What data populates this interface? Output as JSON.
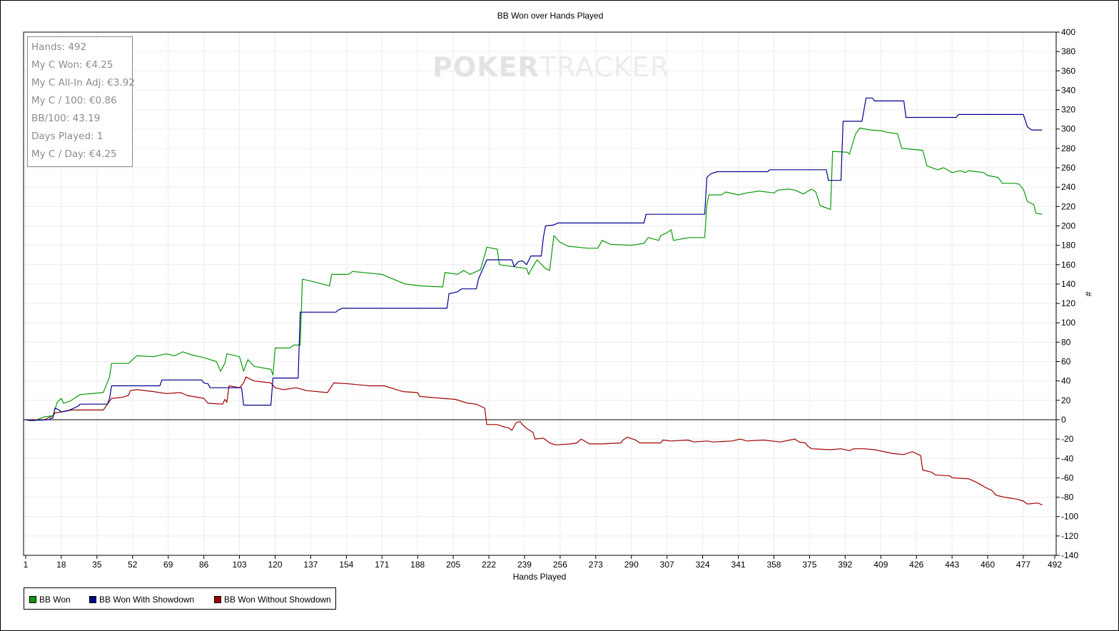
{
  "stats": {
    "hands": "Hands: 492",
    "my_c_won": "My C Won: €4.25",
    "all_in_adj": "My C All-In Adj: €3.92",
    "my_c_100": "My C / 100: €0.86",
    "bb_100": "BB/100: 43.19",
    "days_played": "Days Played: 1",
    "my_c_day": "My C / Day: €4.25"
  },
  "watermark": {
    "part1": "POKER",
    "part2": "TRACKER"
  },
  "legend": {
    "items": [
      {
        "label": "BB Won",
        "color": "#0a9a0a"
      },
      {
        "label": "BB Won With Showdown",
        "color": "#00008b"
      },
      {
        "label": "BB Won Without Showdown",
        "color": "#a00000"
      }
    ]
  },
  "chart_data": {
    "type": "line",
    "title": "BB Won over Hands Played",
    "xlabel": "Hands Played",
    "ylabel": "#",
    "xlim": [
      1,
      492
    ],
    "ylim": [
      -140,
      400
    ],
    "x_ticks": [
      1,
      18,
      35,
      52,
      69,
      86,
      103,
      120,
      137,
      154,
      171,
      188,
      205,
      222,
      239,
      256,
      273,
      290,
      307,
      324,
      341,
      358,
      375,
      392,
      409,
      426,
      443,
      460,
      477,
      492
    ],
    "y_ticks": [
      400,
      380,
      360,
      340,
      320,
      300,
      280,
      260,
      240,
      220,
      200,
      180,
      160,
      140,
      120,
      100,
      80,
      60,
      40,
      20,
      0,
      -20,
      -40,
      -60,
      -80,
      -100,
      -120,
      -140
    ],
    "grid": true,
    "legend_position": "bottom-left",
    "series": [
      {
        "name": "BB Won",
        "color": "#0a9a0a",
        "points": [
          [
            1,
            0
          ],
          [
            5,
            -1
          ],
          [
            10,
            3
          ],
          [
            14,
            4
          ],
          [
            16,
            18
          ],
          [
            18,
            22
          ],
          [
            19,
            17
          ],
          [
            22,
            19
          ],
          [
            27,
            26
          ],
          [
            38,
            28
          ],
          [
            41,
            44
          ],
          [
            42,
            58
          ],
          [
            50,
            58
          ],
          [
            54,
            66
          ],
          [
            62,
            65
          ],
          [
            68,
            68
          ],
          [
            72,
            66
          ],
          [
            76,
            70
          ],
          [
            80,
            67
          ],
          [
            86,
            64
          ],
          [
            92,
            60
          ],
          [
            94,
            50
          ],
          [
            96,
            58
          ],
          [
            97,
            68
          ],
          [
            103,
            65
          ],
          [
            105,
            50
          ],
          [
            107,
            62
          ],
          [
            110,
            55
          ],
          [
            118,
            52
          ],
          [
            119,
            46
          ],
          [
            120,
            74
          ],
          [
            127,
            74
          ],
          [
            129,
            77
          ],
          [
            132,
            77
          ],
          [
            133,
            145
          ],
          [
            139,
            142
          ],
          [
            146,
            138
          ],
          [
            147,
            150
          ],
          [
            155,
            150
          ],
          [
            157,
            153
          ],
          [
            171,
            150
          ],
          [
            182,
            140
          ],
          [
            190,
            138
          ],
          [
            200,
            137
          ],
          [
            201,
            152
          ],
          [
            207,
            150
          ],
          [
            210,
            154
          ],
          [
            213,
            150
          ],
          [
            218,
            155
          ],
          [
            220,
            170
          ],
          [
            221,
            178
          ],
          [
            226,
            176
          ],
          [
            227,
            160
          ],
          [
            240,
            156
          ],
          [
            241,
            150
          ],
          [
            243,
            158
          ],
          [
            245,
            165
          ],
          [
            249,
            156
          ],
          [
            251,
            154
          ],
          [
            253,
            190
          ],
          [
            256,
            183
          ],
          [
            260,
            179
          ],
          [
            269,
            177
          ],
          [
            274,
            177
          ],
          [
            276,
            185
          ],
          [
            280,
            181
          ],
          [
            290,
            180
          ],
          [
            296,
            182
          ],
          [
            298,
            188
          ],
          [
            303,
            185
          ],
          [
            304,
            190
          ],
          [
            307,
            193
          ],
          [
            309,
            196
          ],
          [
            310,
            185
          ],
          [
            315,
            187
          ],
          [
            318,
            188
          ],
          [
            322,
            188
          ],
          [
            325,
            188
          ],
          [
            326,
            222
          ],
          [
            327,
            232
          ],
          [
            333,
            232
          ],
          [
            335,
            235
          ],
          [
            341,
            232
          ],
          [
            345,
            234
          ],
          [
            351,
            236
          ],
          [
            358,
            234
          ],
          [
            360,
            237
          ],
          [
            365,
            238
          ],
          [
            368,
            237
          ],
          [
            372,
            233
          ],
          [
            376,
            238
          ],
          [
            378,
            235
          ],
          [
            380,
            221
          ],
          [
            385,
            217
          ],
          [
            386,
            277
          ],
          [
            393,
            276
          ],
          [
            394,
            274
          ],
          [
            397,
            295
          ],
          [
            399,
            301
          ],
          [
            404,
            299
          ],
          [
            410,
            298
          ],
          [
            411,
            297
          ],
          [
            417,
            295
          ],
          [
            419,
            280
          ],
          [
            429,
            278
          ],
          [
            431,
            262
          ],
          [
            436,
            258
          ],
          [
            439,
            260
          ],
          [
            443,
            255
          ],
          [
            447,
            257
          ],
          [
            449,
            255
          ],
          [
            451,
            257
          ],
          [
            458,
            255
          ],
          [
            460,
            252
          ],
          [
            465,
            250
          ],
          [
            467,
            244
          ],
          [
            473,
            244
          ],
          [
            475,
            243
          ],
          [
            477,
            238
          ],
          [
            479,
            225
          ],
          [
            482,
            222
          ],
          [
            483,
            213
          ],
          [
            486,
            212
          ]
        ]
      },
      {
        "name": "BB Won With Showdown",
        "color": "#00008b",
        "points": [
          [
            1,
            0
          ],
          [
            3,
            -1
          ],
          [
            12,
            0
          ],
          [
            14,
            2
          ],
          [
            15,
            12
          ],
          [
            17,
            10
          ],
          [
            18,
            8
          ],
          [
            22,
            10
          ],
          [
            26,
            14
          ],
          [
            27,
            16
          ],
          [
            40,
            16
          ],
          [
            41,
            22
          ],
          [
            42,
            35
          ],
          [
            65,
            35
          ],
          [
            66,
            41
          ],
          [
            85,
            41
          ],
          [
            86,
            38
          ],
          [
            88,
            37
          ],
          [
            89,
            33
          ],
          [
            104,
            33
          ],
          [
            105,
            15
          ],
          [
            118,
            15
          ],
          [
            119,
            43
          ],
          [
            131,
            43
          ],
          [
            132,
            111
          ],
          [
            149,
            111
          ],
          [
            150,
            113
          ],
          [
            152,
            115
          ],
          [
            202,
            115
          ],
          [
            203,
            130
          ],
          [
            207,
            132
          ],
          [
            209,
            135
          ],
          [
            216,
            135
          ],
          [
            217,
            145
          ],
          [
            219,
            155
          ],
          [
            221,
            165
          ],
          [
            233,
            165
          ],
          [
            234,
            158
          ],
          [
            236,
            163
          ],
          [
            238,
            164
          ],
          [
            240,
            160
          ],
          [
            242,
            169
          ],
          [
            247,
            169
          ],
          [
            248,
            188
          ],
          [
            249,
            200
          ],
          [
            253,
            201
          ],
          [
            255,
            203
          ],
          [
            296,
            203
          ],
          [
            297,
            212
          ],
          [
            325,
            212
          ],
          [
            326,
            250
          ],
          [
            328,
            254
          ],
          [
            331,
            256
          ],
          [
            355,
            256
          ],
          [
            356,
            258
          ],
          [
            383,
            258
          ],
          [
            384,
            247
          ],
          [
            390,
            247
          ],
          [
            391,
            308
          ],
          [
            400,
            308
          ],
          [
            401,
            320
          ],
          [
            402,
            332
          ],
          [
            405,
            332
          ],
          [
            406,
            329
          ],
          [
            420,
            329
          ],
          [
            421,
            312
          ],
          [
            445,
            312
          ],
          [
            446,
            315
          ],
          [
            477,
            315
          ],
          [
            479,
            302
          ],
          [
            481,
            299
          ],
          [
            486,
            299
          ]
        ]
      },
      {
        "name": "BB Won Without Showdown",
        "color": "#a00000",
        "points": [
          [
            1,
            0
          ],
          [
            10,
            0
          ],
          [
            12,
            2
          ],
          [
            14,
            4
          ],
          [
            15,
            7
          ],
          [
            18,
            8
          ],
          [
            23,
            10
          ],
          [
            38,
            10
          ],
          [
            41,
            19
          ],
          [
            42,
            22
          ],
          [
            47,
            23
          ],
          [
            50,
            25
          ],
          [
            51,
            30
          ],
          [
            54,
            31
          ],
          [
            62,
            29
          ],
          [
            68,
            27
          ],
          [
            75,
            28
          ],
          [
            78,
            25
          ],
          [
            86,
            22
          ],
          [
            88,
            17
          ],
          [
            95,
            16
          ],
          [
            96,
            21
          ],
          [
            97,
            18
          ],
          [
            98,
            35
          ],
          [
            103,
            33
          ],
          [
            105,
            38
          ],
          [
            106,
            44
          ],
          [
            110,
            40
          ],
          [
            118,
            38
          ],
          [
            120,
            33
          ],
          [
            124,
            31
          ],
          [
            130,
            33
          ],
          [
            135,
            30
          ],
          [
            145,
            28
          ],
          [
            148,
            38
          ],
          [
            155,
            37
          ],
          [
            165,
            35
          ],
          [
            172,
            35
          ],
          [
            178,
            31
          ],
          [
            181,
            29
          ],
          [
            188,
            28
          ],
          [
            189,
            24
          ],
          [
            200,
            22
          ],
          [
            206,
            21
          ],
          [
            212,
            17
          ],
          [
            216,
            16
          ],
          [
            218,
            14
          ],
          [
            220,
            12
          ],
          [
            221,
            -5
          ],
          [
            226,
            -5
          ],
          [
            230,
            -8
          ],
          [
            231,
            -8
          ],
          [
            233,
            -11
          ],
          [
            235,
            -3
          ],
          [
            237,
            -2
          ],
          [
            238,
            -5
          ],
          [
            240,
            -9
          ],
          [
            243,
            -13
          ],
          [
            244,
            -20
          ],
          [
            248,
            -19
          ],
          [
            251,
            -24
          ],
          [
            254,
            -26
          ],
          [
            261,
            -25
          ],
          [
            264,
            -24
          ],
          [
            266,
            -20
          ],
          [
            270,
            -25
          ],
          [
            276,
            -25
          ],
          [
            285,
            -24
          ],
          [
            286,
            -21
          ],
          [
            288,
            -18
          ],
          [
            292,
            -21
          ],
          [
            294,
            -24
          ],
          [
            304,
            -24
          ],
          [
            305,
            -21
          ],
          [
            309,
            -22
          ],
          [
            317,
            -21
          ],
          [
            320,
            -23
          ],
          [
            326,
            -22
          ],
          [
            329,
            -23
          ],
          [
            338,
            -22
          ],
          [
            342,
            -20
          ],
          [
            345,
            -22
          ],
          [
            353,
            -21
          ],
          [
            361,
            -23
          ],
          [
            368,
            -20
          ],
          [
            370,
            -23
          ],
          [
            373,
            -24
          ],
          [
            374,
            -27
          ],
          [
            376,
            -30
          ],
          [
            385,
            -31
          ],
          [
            390,
            -30
          ],
          [
            394,
            -32
          ],
          [
            396,
            -30
          ],
          [
            401,
            -30
          ],
          [
            406,
            -31
          ],
          [
            415,
            -35
          ],
          [
            420,
            -36
          ],
          [
            424,
            -33
          ],
          [
            428,
            -37
          ],
          [
            429,
            -52
          ],
          [
            433,
            -54
          ],
          [
            435,
            -57
          ],
          [
            442,
            -58
          ],
          [
            443,
            -60
          ],
          [
            451,
            -61
          ],
          [
            455,
            -65
          ],
          [
            459,
            -70
          ],
          [
            462,
            -73
          ],
          [
            464,
            -78
          ],
          [
            468,
            -80
          ],
          [
            474,
            -82
          ],
          [
            477,
            -84
          ],
          [
            479,
            -87
          ],
          [
            484,
            -86
          ],
          [
            486,
            -88
          ]
        ]
      }
    ]
  }
}
